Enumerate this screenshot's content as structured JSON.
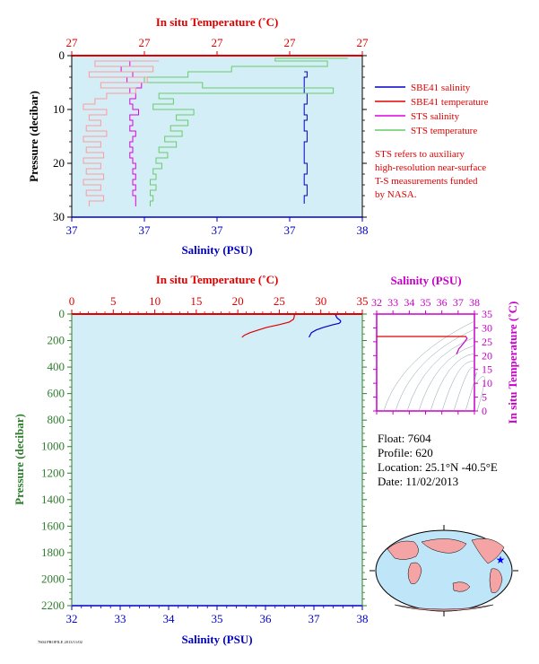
{
  "colors": {
    "panel_bg": "#d4eef8",
    "temp_axis": "#e00000",
    "sal_axis": "#0000c8",
    "pressure_axis": "#2e7d2e",
    "sts_salinity": "#e000e0",
    "sts_temperature": "#66cc66",
    "sbe_salinity": "#0000c8",
    "sbe_temperature": "#e00000",
    "sbe_temperature_light": "#ff9999",
    "inset_axis": "#c800c8",
    "land": "#f4a4a4",
    "ocean": "#bfe6f8",
    "star": "#0000ff"
  },
  "legend": {
    "sbe41_salinity": "SBE41 salinity",
    "sbe41_temperature": "SBE41 temperature",
    "sts_salinity": "STS salinity",
    "sts_temperature": "STS temperature"
  },
  "note": {
    "line1": "STS refers to auxiliary",
    "line2": "high-resolution near-surface",
    "line3": "T-S measurements funded",
    "line4": "by NASA."
  },
  "info": {
    "float": "Float:  7604",
    "profile": "Profile:  620",
    "location": "Location:  25.1°N  -40.5°E",
    "date": "Date:  11/02/2013"
  },
  "footer": "7604 PROFILE 2013/11/02",
  "chart_data": [
    {
      "id": "upper",
      "type": "line",
      "top_axis_label": "In situ Temperature (˚C)",
      "top_ticks": [
        "27",
        "27",
        "27",
        "27",
        "27"
      ],
      "bottom_axis_label": "Salinity (PSU)",
      "bottom_ticks": [
        "37",
        "37",
        "37",
        "37",
        "38"
      ],
      "ylabel": "Pressure (decibar)",
      "yticks": [
        "0",
        "10",
        "20",
        "30"
      ],
      "ylim": [
        0,
        30
      ],
      "series": [
        {
          "name": "SBE41 salinity",
          "p": [
            3,
            4,
            5,
            7,
            9,
            11,
            12,
            14,
            16,
            18,
            20,
            22,
            24,
            26,
            27.5
          ],
          "x": [
            0.8,
            0.81,
            0.8,
            0.8,
            0.81,
            0.8,
            0.81,
            0.8,
            0.81,
            0.8,
            0.8,
            0.81,
            0.8,
            0.81,
            0.8
          ]
        },
        {
          "name": "STS salinity",
          "p": [
            1,
            2,
            3,
            4,
            5,
            6,
            7,
            8,
            9,
            10,
            11,
            12,
            13,
            14,
            15,
            16,
            17,
            18,
            19,
            20,
            21,
            22,
            23,
            24,
            25,
            26,
            27,
            28
          ],
          "x": [
            0.18,
            0.2,
            0.17,
            0.21,
            0.19,
            0.24,
            0.2,
            0.22,
            0.2,
            0.21,
            0.23,
            0.2,
            0.21,
            0.2,
            0.22,
            0.21,
            0.2,
            0.21,
            0.2,
            0.21,
            0.22,
            0.21,
            0.22,
            0.21,
            0.22,
            0.21,
            0.22,
            0.22
          ]
        },
        {
          "name": "STS temperature",
          "p": [
            0.5,
            1,
            2,
            3,
            4,
            5,
            6,
            7,
            8,
            9,
            10,
            11,
            12,
            13,
            14,
            15,
            16,
            17,
            18,
            19,
            20,
            21,
            22,
            23,
            24,
            25,
            26,
            27,
            28
          ],
          "x": [
            0.95,
            0.7,
            0.88,
            0.55,
            0.4,
            0.25,
            0.45,
            0.9,
            0.3,
            0.35,
            0.28,
            0.42,
            0.36,
            0.4,
            0.34,
            0.38,
            0.32,
            0.36,
            0.3,
            0.33,
            0.29,
            0.31,
            0.28,
            0.29,
            0.27,
            0.29,
            0.27,
            0.28,
            0.27
          ]
        },
        {
          "name": "SBE41 temperature",
          "p": [
            1,
            2,
            3,
            4,
            5,
            6,
            7,
            8,
            9,
            10,
            11,
            12,
            13,
            14,
            15,
            16,
            17,
            18,
            19,
            20,
            21,
            22,
            23,
            24,
            25,
            26,
            27,
            28
          ],
          "x": [
            0.3,
            0.08,
            0.28,
            0.06,
            0.26,
            0.1,
            0.22,
            0.12,
            0.08,
            0.04,
            0.12,
            0.06,
            0.1,
            0.05,
            0.12,
            0.04,
            0.1,
            0.05,
            0.11,
            0.04,
            0.1,
            0.05,
            0.11,
            0.04,
            0.1,
            0.05,
            0.11,
            0.06
          ]
        }
      ]
    },
    {
      "id": "lower",
      "type": "line",
      "top_axis_label": "In situ Temperature (˚C)",
      "top_ticks": [
        "0",
        "5",
        "10",
        "15",
        "20",
        "25",
        "30",
        "35"
      ],
      "xlim_temp": [
        0,
        35
      ],
      "bottom_axis_label": "Salinity (PSU)",
      "bottom_ticks": [
        "32",
        "33",
        "34",
        "35",
        "36",
        "37",
        "38"
      ],
      "xlim_sal": [
        32,
        38
      ],
      "ylabel": "Pressure (decibar)",
      "yticks": [
        "0",
        "200",
        "400",
        "600",
        "800",
        "1000",
        "1200",
        "1400",
        "1600",
        "1800",
        "2000",
        "2200"
      ],
      "ylim": [
        0,
        2200
      ],
      "series": [
        {
          "name": "Temperature",
          "p": [
            0,
            10,
            20,
            40,
            60,
            80,
            100,
            120,
            140,
            160,
            175
          ],
          "t": [
            26.9,
            26.8,
            26.8,
            26.7,
            26.2,
            25.0,
            23.5,
            22.5,
            21.5,
            20.8,
            20.5
          ]
        },
        {
          "name": "Salinity",
          "p": [
            0,
            10,
            30,
            50,
            60,
            70,
            80,
            100,
            120,
            140,
            160,
            175
          ],
          "s": [
            37.48,
            37.45,
            37.48,
            37.55,
            37.55,
            37.52,
            37.4,
            37.2,
            37.05,
            36.95,
            36.92,
            36.9
          ]
        }
      ]
    },
    {
      "id": "ts_inset",
      "type": "line",
      "top_axis_label": "Salinity (PSU)",
      "top_ticks": [
        "32",
        "33",
        "34",
        "35",
        "36",
        "37",
        "38"
      ],
      "xlim": [
        32,
        38
      ],
      "right_axis_label": "In situ Temperature (˚C)",
      "right_ticks": [
        "0",
        "5",
        "10",
        "15",
        "20",
        "25",
        "30",
        "35"
      ],
      "ylim": [
        0,
        35
      ],
      "series": [
        {
          "name": "T-S",
          "s": [
            37.48,
            37.48,
            37.55,
            37.4,
            37.2,
            37.05,
            36.9
          ],
          "t": [
            26.9,
            26.8,
            26.2,
            25.0,
            23.5,
            22.5,
            20.5
          ]
        }
      ]
    }
  ]
}
